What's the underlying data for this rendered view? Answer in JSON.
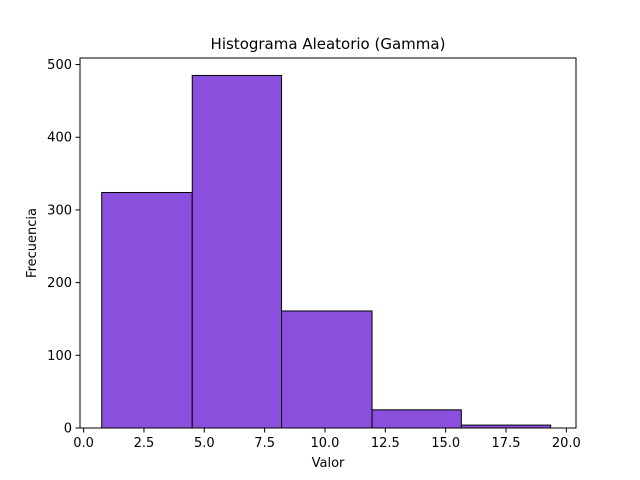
{
  "chart_data": {
    "type": "bar",
    "title": "Histograma Aleatorio (Gamma)",
    "xlabel": "Valor",
    "ylabel": "Frecuencia",
    "xlim": [
      -0.15,
      20.4
    ],
    "ylim": [
      0,
      509
    ],
    "xticks": [
      0.0,
      2.5,
      5.0,
      7.5,
      10.0,
      12.5,
      15.0,
      17.5,
      20.0
    ],
    "xtick_labels": [
      "0.0",
      "2.5",
      "5.0",
      "7.5",
      "10.0",
      "12.5",
      "15.0",
      "17.5",
      "20.0"
    ],
    "yticks": [
      0,
      100,
      200,
      300,
      400,
      500
    ],
    "ytick_labels": [
      "0",
      "100",
      "200",
      "300",
      "400",
      "500"
    ],
    "bins": [
      {
        "start": 0.75,
        "end": 4.5,
        "count": 324
      },
      {
        "start": 4.5,
        "end": 8.2,
        "count": 485
      },
      {
        "start": 8.2,
        "end": 11.95,
        "count": 161
      },
      {
        "start": 11.95,
        "end": 15.65,
        "count": 25
      },
      {
        "start": 15.65,
        "end": 19.35,
        "count": 4
      }
    ],
    "bar_color": "#8a4fdc",
    "edge_color": "#000000",
    "grid": false,
    "legend": false
  }
}
